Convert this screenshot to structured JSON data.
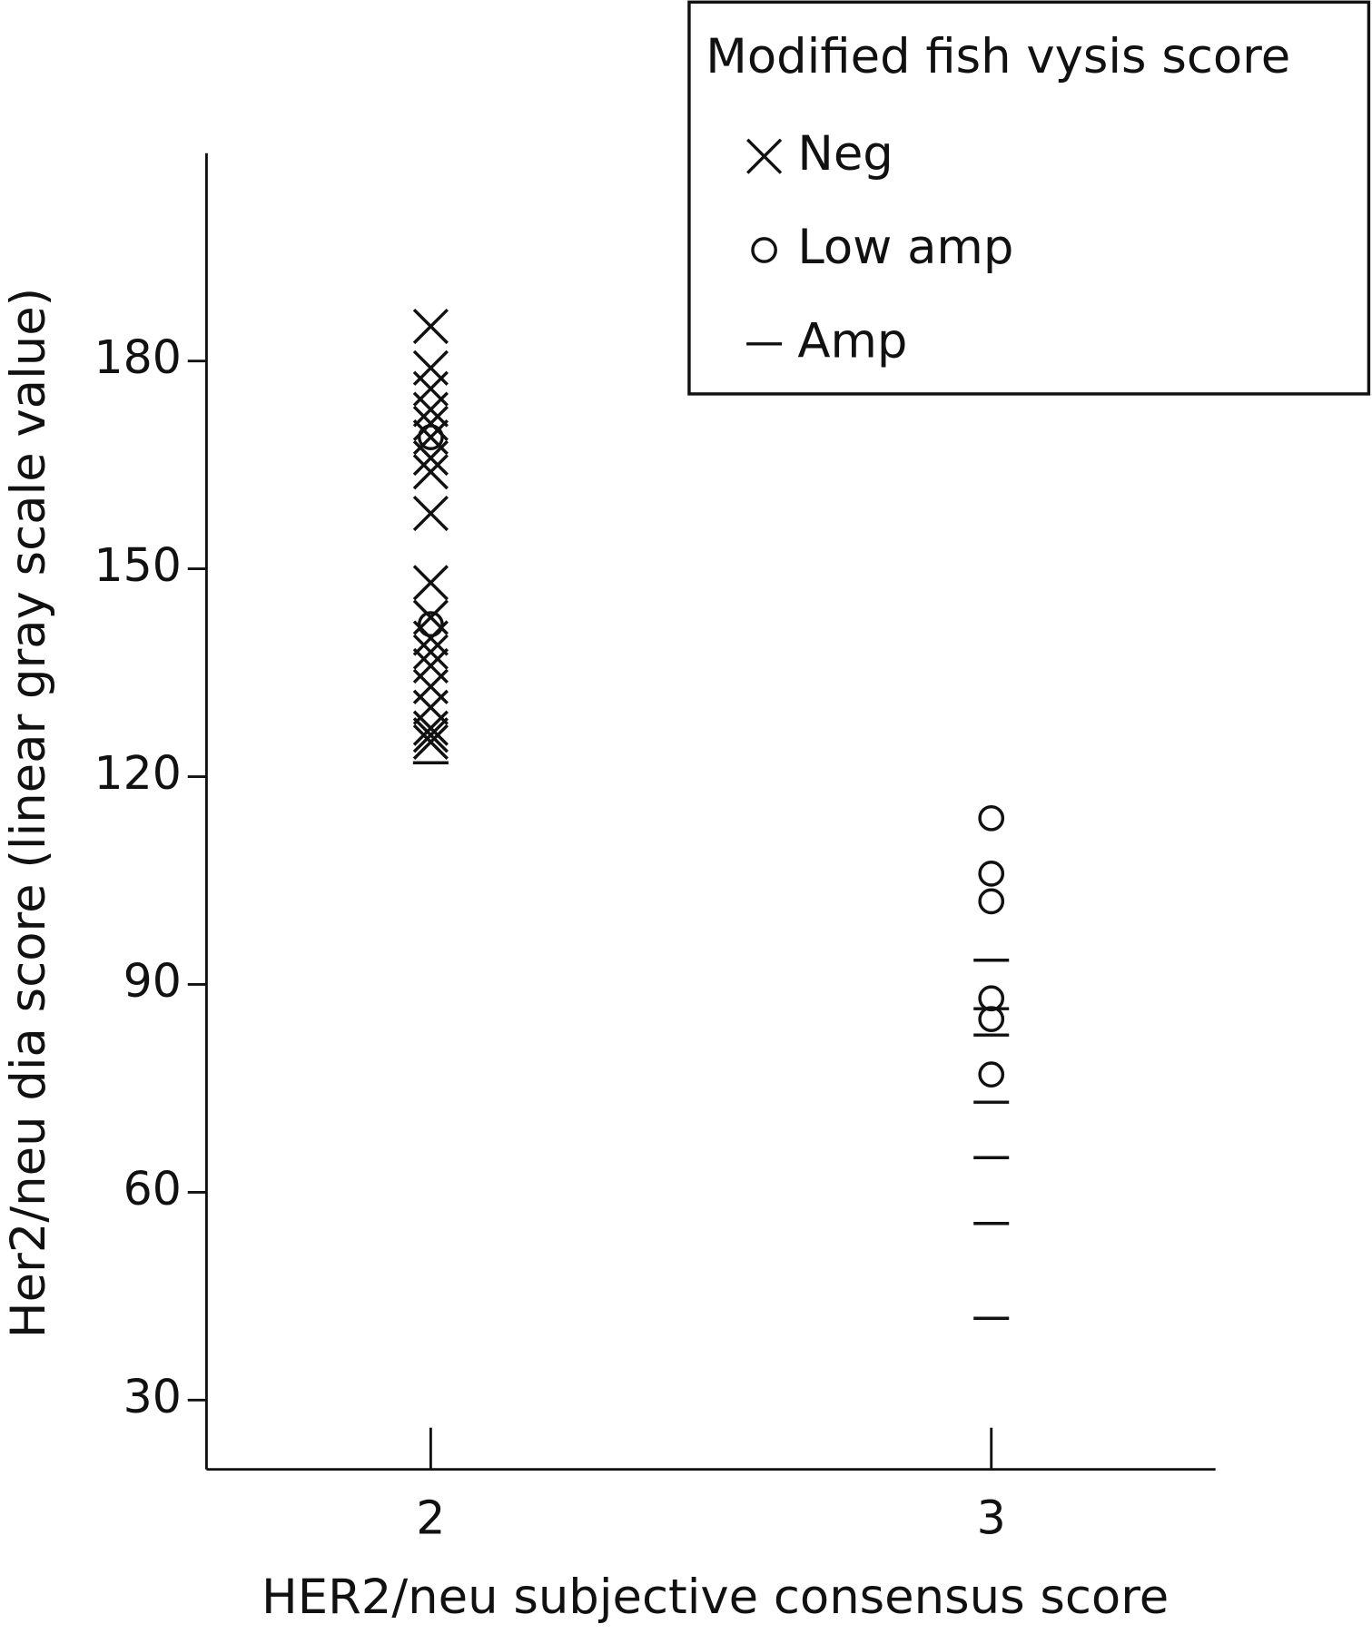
{
  "chart_data": {
    "type": "scatter",
    "xlabel": "HER2/neu subjective consensus score",
    "ylabel": "Her2/neu dia score (linear gray scale value)",
    "xlim": [
      1.6,
      3.4
    ],
    "ylim": [
      20,
      210
    ],
    "xticks": [
      2,
      3
    ],
    "yticks": [
      30,
      60,
      90,
      120,
      150,
      180
    ],
    "legend_title": "Modified fish vysis score",
    "legend_position": "upper right",
    "series": [
      {
        "name": "Neg",
        "marker": "x",
        "color": "#111111",
        "x": [
          2,
          2,
          2,
          2,
          2,
          2,
          2,
          2,
          2,
          2,
          2,
          2,
          2,
          2,
          2,
          2,
          2,
          2,
          2
        ],
        "values": [
          185,
          179,
          176,
          173,
          171,
          169,
          166,
          164,
          158,
          148,
          143,
          140,
          138,
          136,
          133,
          130,
          127,
          126,
          125
        ]
      },
      {
        "name": "Low amp",
        "marker": "o",
        "color": "#111111",
        "x": [
          2,
          2,
          3,
          3,
          3,
          3,
          3,
          3
        ],
        "values": [
          169,
          142,
          114,
          106,
          102,
          88,
          85,
          77
        ]
      },
      {
        "name": "Amp",
        "marker": "_",
        "color": "#111111",
        "x": [
          2,
          3,
          3,
          3,
          3,
          3,
          3,
          3
        ],
        "values": [
          122,
          93.5,
          86.5,
          82.7,
          73,
          65,
          55.5,
          41.8
        ]
      }
    ]
  }
}
